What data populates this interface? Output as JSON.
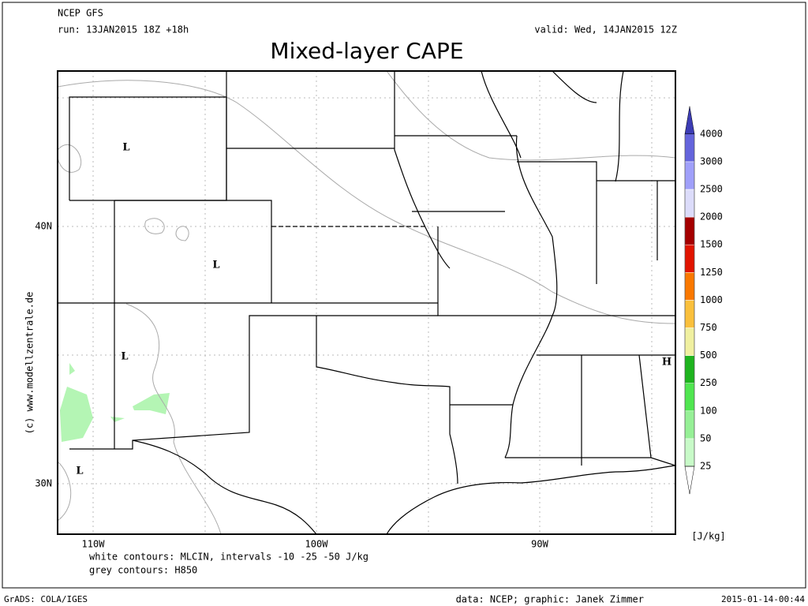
{
  "header": {
    "model": "NCEP GFS",
    "run": "run: 13JAN2015 18Z +18h",
    "valid": "valid: Wed, 14JAN2015 12Z",
    "title": "Mixed-layer CAPE"
  },
  "map": {
    "lat_labels": [
      "40N",
      "30N"
    ],
    "lon_labels": [
      "110W",
      "100W",
      "90W"
    ],
    "pressure_centers": [
      "L",
      "L",
      "L",
      "L",
      "H"
    ],
    "credit": "(c) www.modellzentrale.de"
  },
  "colorbar": {
    "levels": [
      25,
      50,
      100,
      250,
      500,
      750,
      1000,
      1250,
      1500,
      2000,
      2500,
      3000,
      4000
    ],
    "colors": [
      "#c8fac8",
      "#96f096",
      "#50e650",
      "#1eb41e",
      "#f0f0a0",
      "#fac03c",
      "#fa7800",
      "#e11400",
      "#a50000",
      "#dcdcfa",
      "#a0a0fa",
      "#6464dc"
    ],
    "above_color": "#3c3cb4",
    "below_color": "#ffffff",
    "unit": "[J/kg]"
  },
  "notes": [
    "white contours: MLCIN, intervals -10 -25 -50 J/kg",
    "grey contours: H850"
  ],
  "footer": {
    "left": "GrADS: COLA/IGES",
    "center": "data: NCEP; graphic: Janek Zimmer",
    "right": "2015-01-14-00:44"
  }
}
